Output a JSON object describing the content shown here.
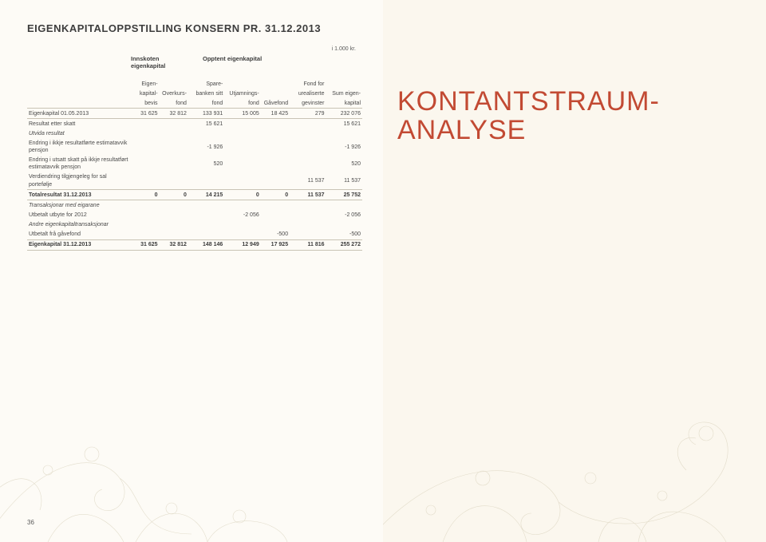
{
  "title": "EIGENKAPITALOPPSTILLING KONSERN PR. 31.12.2013",
  "unit": "i 1.000 kr.",
  "group_headers": {
    "g1": "Innskoten eigenkapital",
    "g2": "Opptent eigenkapital"
  },
  "columns": {
    "c1": {
      "l1": "Eigen-",
      "l2": "kapital-",
      "l3": "bevis"
    },
    "c2": {
      "l1": "",
      "l2": "Overkurs-",
      "l3": "fond"
    },
    "c3": {
      "l1": "Spare-",
      "l2": "banken sitt",
      "l3": "fond"
    },
    "c4": {
      "l1": "",
      "l2": "Utjamnings-",
      "l3": "fond"
    },
    "c5": {
      "l1": "",
      "l2": "",
      "l3": "Gåvefond"
    },
    "c6": {
      "l1": "Fond for",
      "l2": "urealiserte",
      "l3": "gevinster"
    },
    "c7": {
      "l1": "",
      "l2": "Sum eigen-",
      "l3": "kapital"
    }
  },
  "rows": [
    {
      "label": "Eigenkapital 01.05.2013",
      "c1": "31 625",
      "c2": "32 812",
      "c3": "133 931",
      "c4": "15 005",
      "c5": "18 425",
      "c6": "279",
      "c7": "232 076",
      "border": true
    },
    {
      "label": "Resultat etter skatt",
      "c1": "",
      "c2": "",
      "c3": "15 621",
      "c4": "",
      "c5": "",
      "c6": "",
      "c7": "15 621"
    },
    {
      "label": "Utvida resultat",
      "italic": true
    },
    {
      "label": "Endring i ikkje resultatførte estimatavvik pensjon",
      "c1": "",
      "c2": "",
      "c3": "-1 926",
      "c4": "",
      "c5": "",
      "c6": "",
      "c7": "-1 926"
    },
    {
      "label": "Endring i utsatt skatt på ikkje resultatført estimatavvik pensjon",
      "c1": "",
      "c2": "",
      "c3": "520",
      "c4": "",
      "c5": "",
      "c6": "",
      "c7": "520"
    },
    {
      "label": "Verdiendring tilgjengeleg for sal portefølje",
      "c1": "",
      "c2": "",
      "c3": "",
      "c4": "",
      "c5": "",
      "c6": "11 537",
      "c7": "11 537",
      "border": true
    },
    {
      "label": "Totalresultat 31.12.2013",
      "c1": "0",
      "c2": "0",
      "c3": "14 215",
      "c4": "0",
      "c5": "0",
      "c6": "11 537",
      "c7": "25 752",
      "bold": true,
      "border": true
    },
    {
      "label": "Transaksjonar med eigarane",
      "italic": true
    },
    {
      "label": "Utbetalt utbyte for 2012",
      "c1": "",
      "c2": "",
      "c3": "",
      "c4": "-2 056",
      "c5": "",
      "c6": "",
      "c7": "-2 056"
    },
    {
      "label": "Andre eigenkapitaltransaksjonar",
      "italic": true
    },
    {
      "label": "Utbetalt frå gåvefond",
      "c1": "",
      "c2": "",
      "c3": "",
      "c4": "",
      "c5": "-500",
      "c6": "",
      "c7": "-500",
      "border": true
    },
    {
      "label": "Eigenkapital 31.12.2013",
      "c1": "31 625",
      "c2": "32 812",
      "c3": "148 146",
      "c4": "12 949",
      "c5": "17 925",
      "c6": "11 816",
      "c7": "255 272",
      "bold": true,
      "border": true
    }
  ],
  "right_title_l1": "KONTANTSTRAUM-",
  "right_title_l2": "ANALYSE",
  "page_num": "36",
  "colors": {
    "accent": "#c24a33",
    "text": "#4a4a4a",
    "border": "#c9c3b5",
    "bg_left": "#fdfbf6",
    "bg_right": "#fbf7ee",
    "deco": "#d8d1bb"
  }
}
